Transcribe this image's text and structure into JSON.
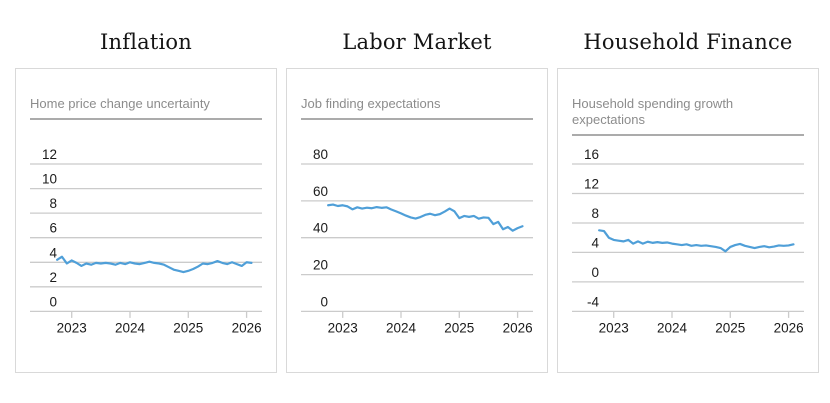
{
  "theme": {
    "background": "#ffffff",
    "line_color": "#4f9fd8",
    "grid_color": "#cbcbcb",
    "tick_label_color": "#1b1b1b",
    "subtitle_color": "#8c8c8c",
    "subtitle_rule_color": "#ababab",
    "card_border_color": "#d9d9d9"
  },
  "panels": [
    {
      "title": "Inflation",
      "subtitle": "Home price change uncertainty"
    },
    {
      "title": "Labor Market",
      "subtitle": "Job finding expectations"
    },
    {
      "title": "Household Finance",
      "subtitle": "Household spending growth expectations"
    }
  ],
  "chart_data": [
    {
      "type": "line",
      "panel": "Inflation",
      "title": "Home price change uncertainty",
      "legend": "none",
      "grid": "horizontal",
      "x_unit": "monthly",
      "x_start": "2022-10",
      "x_end": "2026-02",
      "x_ticks": [
        "2023",
        "2024",
        "2025",
        "2026"
      ],
      "y_ticks": [
        12,
        10,
        8,
        6,
        4,
        2,
        0
      ],
      "ylim": [
        0,
        13.2
      ],
      "values": [
        4.2,
        4.45,
        3.9,
        4.15,
        3.95,
        3.7,
        3.9,
        3.8,
        3.95,
        3.9,
        3.95,
        3.9,
        3.8,
        3.95,
        3.85,
        4.0,
        3.9,
        3.85,
        3.95,
        4.05,
        3.95,
        3.9,
        3.8,
        3.6,
        3.4,
        3.3,
        3.2,
        3.3,
        3.45,
        3.65,
        3.9,
        3.85,
        3.95,
        4.1,
        3.95,
        3.85,
        4.0,
        3.85,
        3.7,
        4.0,
        3.95
      ]
    },
    {
      "type": "line",
      "panel": "Labor Market",
      "title": "Job finding expectations",
      "legend": "none",
      "grid": "horizontal",
      "x_unit": "monthly",
      "x_start": "2022-10",
      "x_end": "2026-02",
      "x_ticks": [
        "2023",
        "2024",
        "2025",
        "2026"
      ],
      "y_ticks": [
        80,
        60,
        40,
        20,
        0
      ],
      "ylim": [
        0,
        88
      ],
      "values": [
        57.6,
        58.0,
        57.2,
        57.6,
        57.0,
        55.4,
        56.5,
        55.8,
        56.3,
        56.0,
        56.6,
        56.2,
        56.5,
        55.3,
        54.3,
        53.2,
        52.0,
        51.0,
        50.4,
        51.2,
        52.4,
        53.0,
        52.2,
        52.8,
        54.2,
        55.8,
        54.3,
        50.6,
        51.8,
        51.3,
        51.8,
        50.3,
        51.0,
        50.8,
        47.4,
        48.6,
        44.6,
        45.8,
        43.8,
        45.2,
        46.2
      ]
    },
    {
      "type": "line",
      "panel": "Household Finance",
      "title": "Household spending growth expectations",
      "legend": "none",
      "grid": "horizontal",
      "x_unit": "monthly",
      "x_start": "2022-10",
      "x_end": "2026-02",
      "x_ticks": [
        "2023",
        "2024",
        "2025",
        "2026"
      ],
      "y_ticks": [
        16,
        12,
        8,
        4,
        0,
        -4
      ],
      "ylim": [
        -4,
        17.6
      ],
      "values": [
        7.0,
        6.9,
        6.0,
        5.7,
        5.6,
        5.5,
        5.7,
        5.2,
        5.5,
        5.2,
        5.45,
        5.3,
        5.4,
        5.3,
        5.35,
        5.2,
        5.1,
        5.0,
        5.1,
        4.9,
        5.0,
        4.9,
        4.95,
        4.85,
        4.75,
        4.6,
        4.15,
        4.75,
        5.0,
        5.15,
        4.9,
        4.75,
        4.6,
        4.75,
        4.85,
        4.7,
        4.8,
        4.95,
        4.9,
        4.95,
        5.1
      ]
    }
  ]
}
